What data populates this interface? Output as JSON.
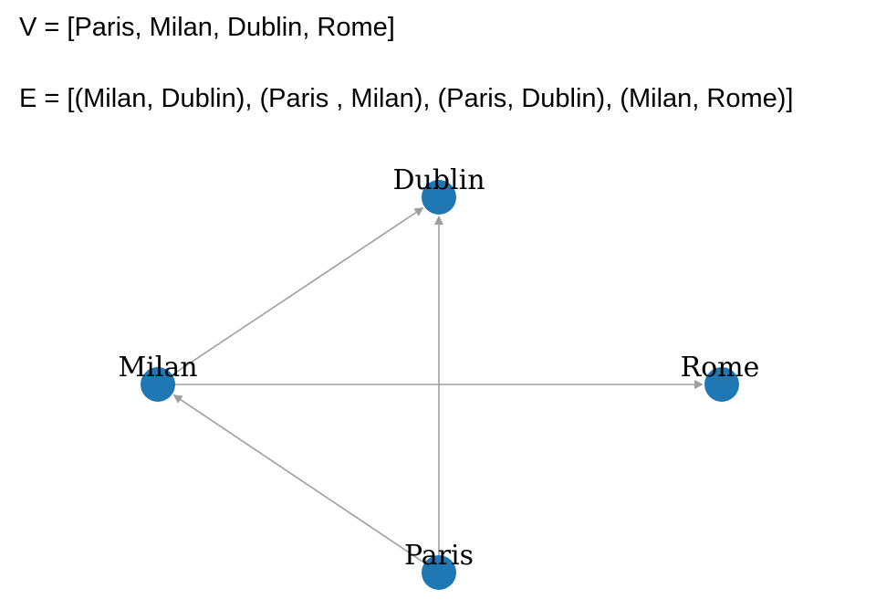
{
  "vertex_line": "V = [Paris, Milan, Dublin, Rome]",
  "edge_line": "E = [(Milan, Dublin), (Paris , Milan), (Paris, Dublin), (Milan, Rome)]",
  "graph": {
    "nodes": [
      {
        "id": "Dublin",
        "label": "Dublin"
      },
      {
        "id": "Milan",
        "label": "Milan"
      },
      {
        "id": "Rome",
        "label": "Rome"
      },
      {
        "id": "Paris",
        "label": "Paris"
      }
    ],
    "edges": [
      {
        "from": "Milan",
        "to": "Dublin"
      },
      {
        "from": "Paris",
        "to": "Milan"
      },
      {
        "from": "Paris",
        "to": "Dublin"
      },
      {
        "from": "Milan",
        "to": "Rome"
      }
    ],
    "directed": true,
    "node_color": "#1f77b4",
    "edge_color": "#9e9e9e"
  }
}
